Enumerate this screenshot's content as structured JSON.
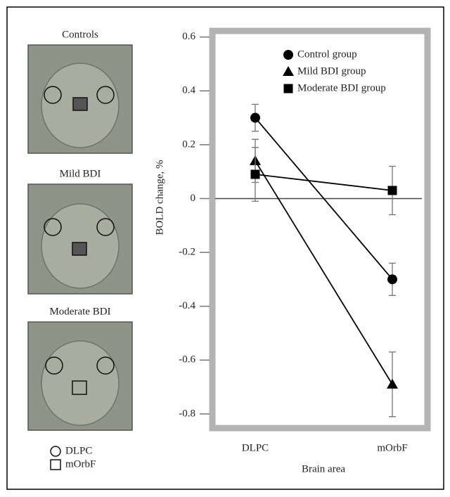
{
  "chart_data": {
    "type": "line",
    "panels": [
      "Controls",
      "Mild BDI",
      "Moderate BDI"
    ],
    "roi_legend": [
      "DLPC",
      "mOrbF"
    ],
    "xlabel": "Brain area",
    "ylabel": "BOLD change, %",
    "categories": [
      "DLPC",
      "mOrbF"
    ],
    "series": [
      {
        "name": "Control group",
        "color": "#000000",
        "marker": "circle",
        "values": [
          0.3,
          -0.3
        ],
        "errors": [
          0.05,
          0.06
        ]
      },
      {
        "name": "Mild BDI group",
        "color": "#000000",
        "marker": "triangle",
        "values": [
          0.14,
          -0.69
        ],
        "errors": [
          0.08,
          0.12
        ]
      },
      {
        "name": "Moderate BDI group",
        "color": "#000000",
        "marker": "square",
        "values": [
          0.09,
          0.03
        ],
        "errors": [
          0.1,
          0.09
        ]
      }
    ],
    "ylim": [
      -0.85,
      0.62
    ],
    "yticks": [
      0.6,
      0.4,
      0.2,
      0,
      -0.2,
      -0.4,
      -0.6,
      -0.8
    ],
    "hline": 0
  }
}
